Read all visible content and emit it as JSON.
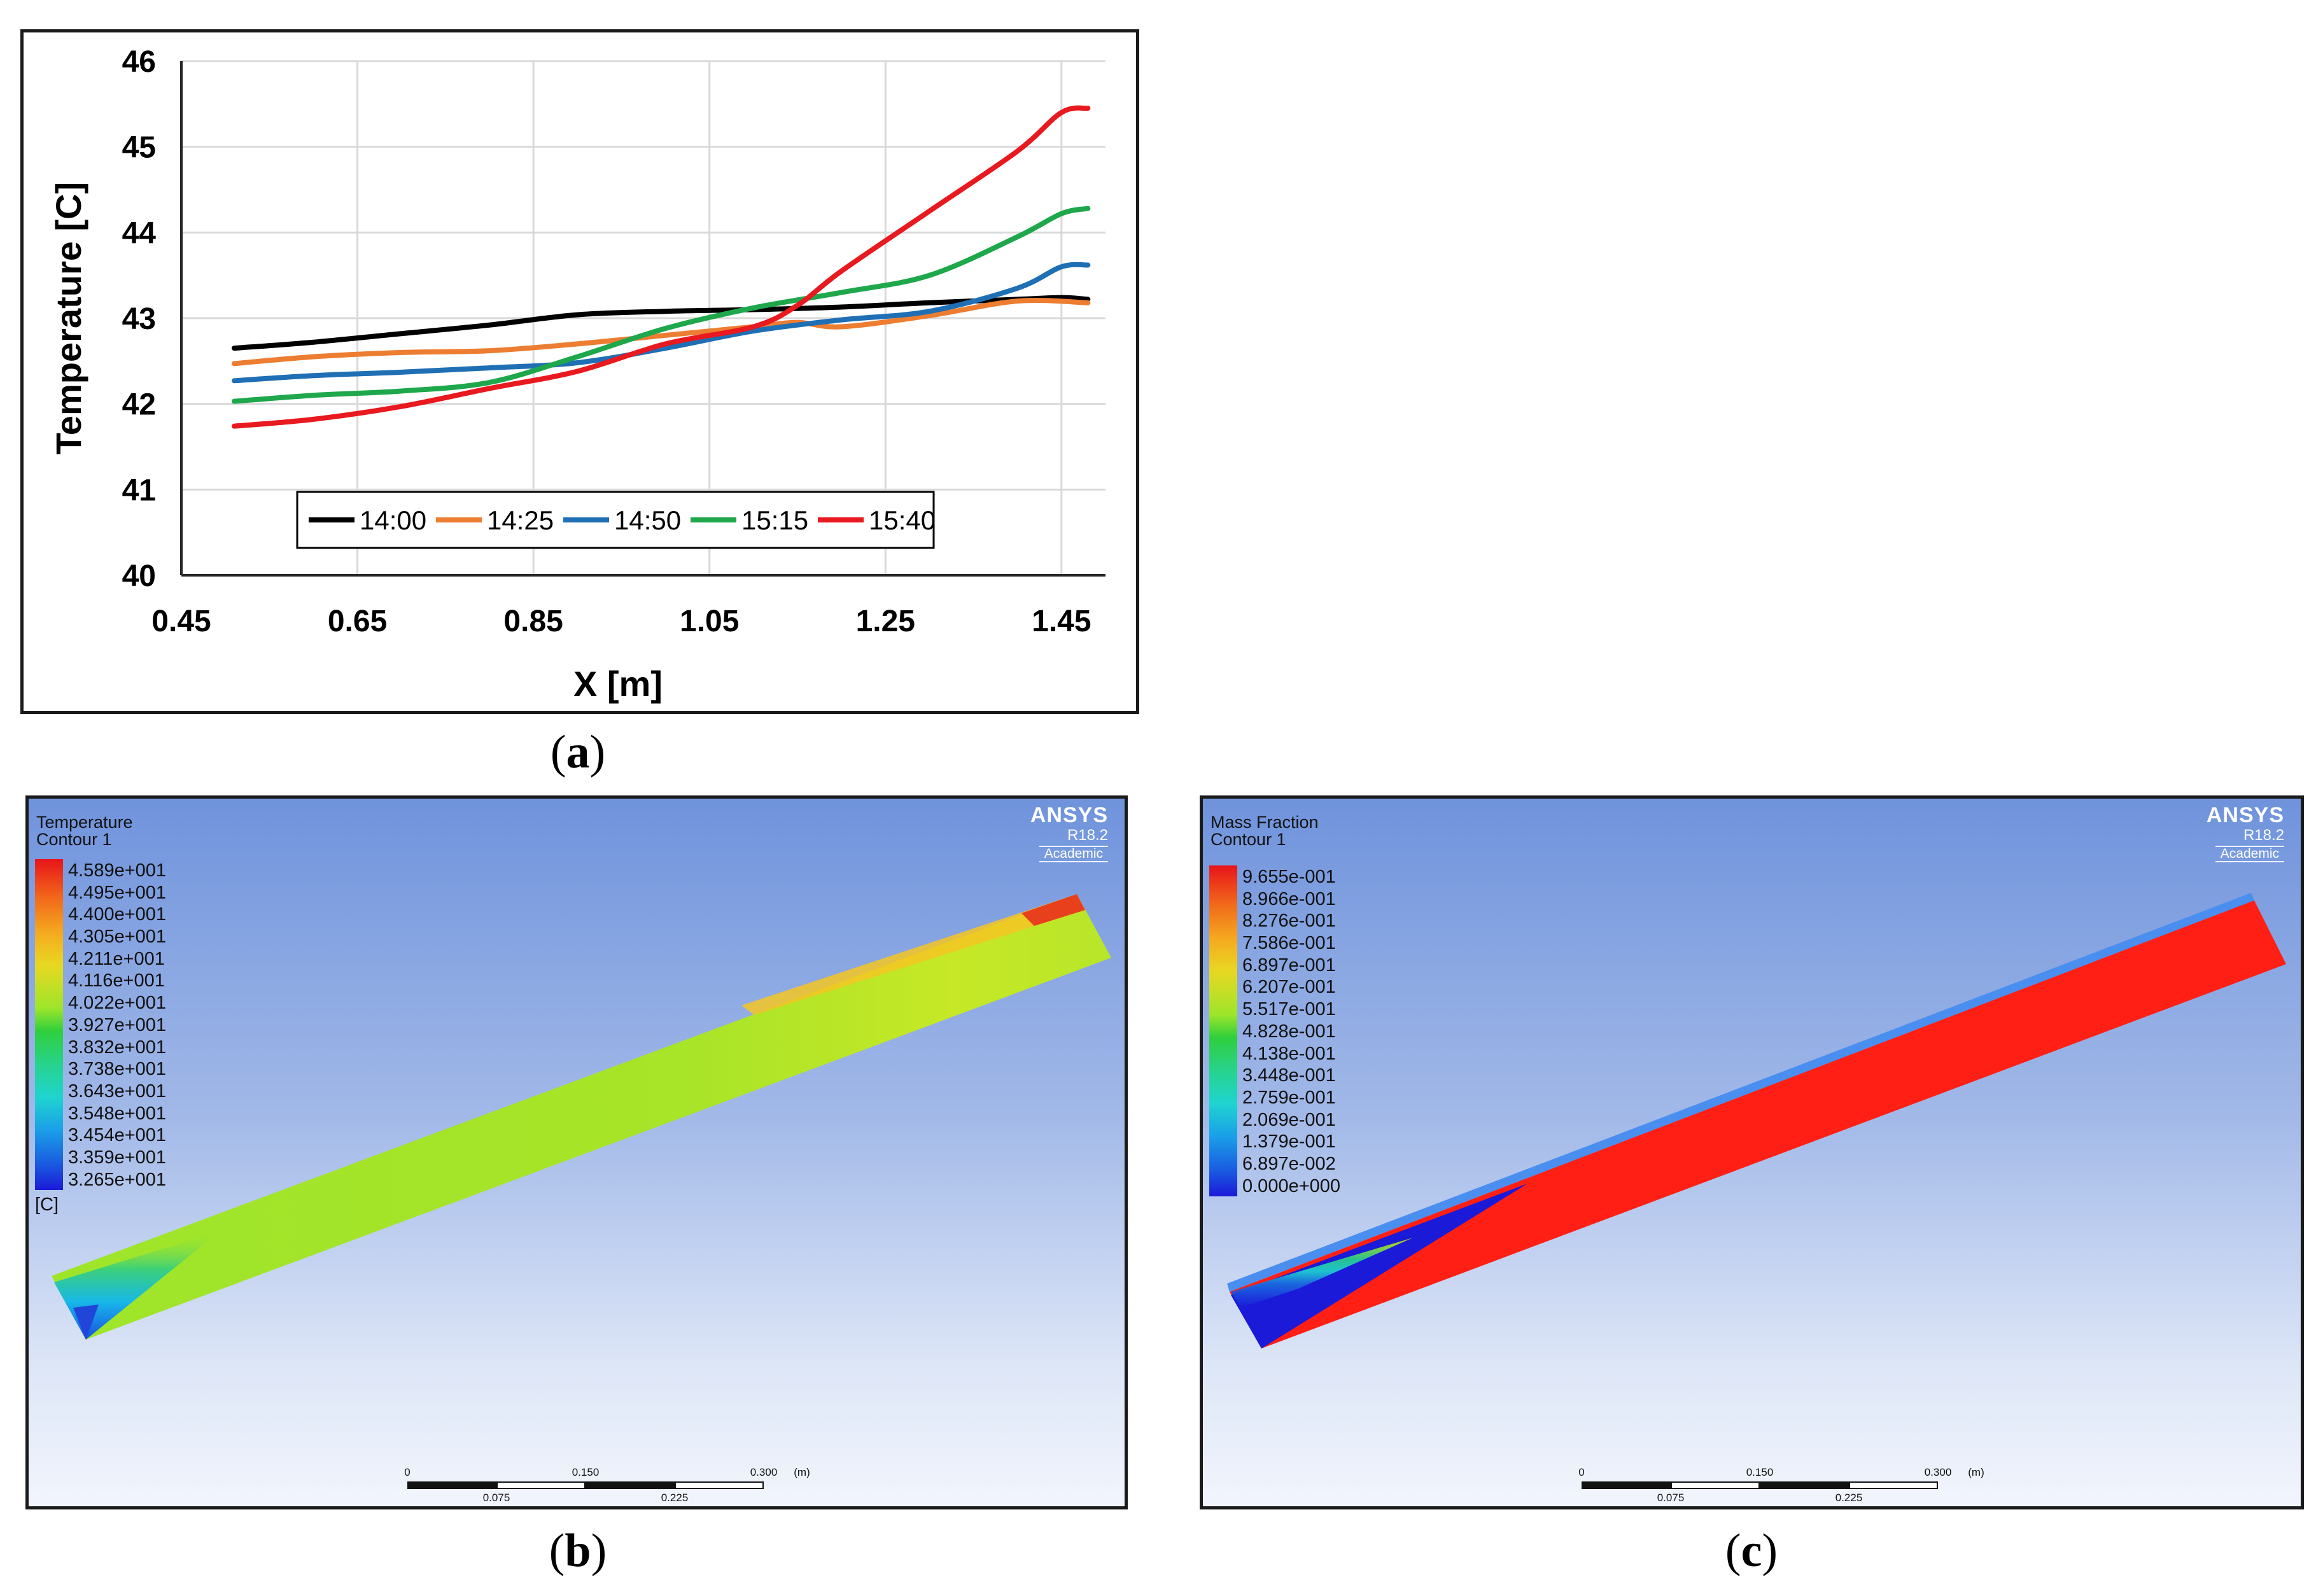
{
  "figure": {
    "caption_a": "a",
    "caption_b": "b",
    "caption_c": "c"
  },
  "chart_data": {
    "type": "line",
    "title": "",
    "xlabel": "X  [m]",
    "ylabel": "Temperature  [C]",
    "xlim": [
      0.45,
      1.5
    ],
    "ylim": [
      40,
      46
    ],
    "xticks": [
      "0.45",
      "0.65",
      "0.85",
      "1.05",
      "1.25",
      "1.45"
    ],
    "yticks": [
      "40",
      "41",
      "42",
      "43",
      "44",
      "45",
      "46"
    ],
    "grid": true,
    "legend_position": "bottom-center-inside",
    "series": [
      {
        "name": "14:00",
        "color": "#000000",
        "x": [
          0.51,
          0.6,
          0.7,
          0.8,
          0.9,
          1.0,
          1.1,
          1.2,
          1.3,
          1.4,
          1.45,
          1.48
        ],
        "y": [
          42.65,
          42.72,
          42.82,
          42.92,
          43.04,
          43.08,
          43.1,
          43.13,
          43.18,
          43.22,
          43.24,
          43.22
        ]
      },
      {
        "name": "14:25",
        "color": "#ed7d31",
        "x": [
          0.51,
          0.6,
          0.7,
          0.8,
          0.9,
          1.0,
          1.1,
          1.15,
          1.2,
          1.3,
          1.4,
          1.48
        ],
        "y": [
          42.47,
          42.55,
          42.6,
          42.62,
          42.7,
          42.8,
          42.9,
          42.95,
          42.9,
          43.03,
          43.2,
          43.18
        ]
      },
      {
        "name": "14:50",
        "color": "#1f6fb5",
        "x": [
          0.51,
          0.6,
          0.7,
          0.8,
          0.9,
          1.0,
          1.1,
          1.2,
          1.3,
          1.4,
          1.45,
          1.48
        ],
        "y": [
          42.27,
          42.33,
          42.37,
          42.42,
          42.48,
          42.65,
          42.85,
          42.98,
          43.08,
          43.35,
          43.6,
          43.62
        ]
      },
      {
        "name": "15:15",
        "color": "#1ea84b",
        "x": [
          0.51,
          0.6,
          0.7,
          0.8,
          0.9,
          1.0,
          1.1,
          1.2,
          1.3,
          1.4,
          1.45,
          1.48
        ],
        "y": [
          42.03,
          42.1,
          42.15,
          42.25,
          42.55,
          42.88,
          43.12,
          43.3,
          43.5,
          43.95,
          44.22,
          44.28
        ]
      },
      {
        "name": "15:40",
        "color": "#e8191f",
        "x": [
          0.51,
          0.6,
          0.7,
          0.8,
          0.9,
          1.0,
          1.1,
          1.15,
          1.2,
          1.3,
          1.4,
          1.45,
          1.48
        ],
        "y": [
          41.74,
          41.82,
          41.97,
          42.18,
          42.38,
          42.7,
          42.9,
          43.15,
          43.55,
          44.25,
          44.95,
          45.4,
          45.45
        ]
      }
    ]
  },
  "panel_b": {
    "title_line1": "Temperature",
    "title_line2": "Contour 1",
    "brand": "ANSYS",
    "version": "R18.2",
    "edition": "Academic",
    "legend": [
      "4.589e+001",
      "4.495e+001",
      "4.400e+001",
      "4.305e+001",
      "4.211e+001",
      "4.116e+001",
      "4.022e+001",
      "3.927e+001",
      "3.832e+001",
      "3.738e+001",
      "3.643e+001",
      "3.548e+001",
      "3.454e+001",
      "3.359e+001",
      "3.265e+001"
    ],
    "unit": "[C]",
    "scale_top": [
      "0",
      "0.150",
      "0.300",
      "(m)"
    ],
    "scale_bottom": [
      "0.075",
      "0.225"
    ]
  },
  "panel_c": {
    "title_line1": "Mass Fraction",
    "title_line2": "Contour 1",
    "brand": "ANSYS",
    "version": "R18.2",
    "edition": "Academic",
    "legend": [
      "9.655e-001",
      "8.966e-001",
      "8.276e-001",
      "7.586e-001",
      "6.897e-001",
      "6.207e-001",
      "5.517e-001",
      "4.828e-001",
      "4.138e-001",
      "3.448e-001",
      "2.759e-001",
      "2.069e-001",
      "1.379e-001",
      "6.897e-002",
      "0.000e+000"
    ],
    "scale_top": [
      "0",
      "0.150",
      "0.300",
      "(m)"
    ],
    "scale_bottom": [
      "0.075",
      "0.225"
    ]
  }
}
